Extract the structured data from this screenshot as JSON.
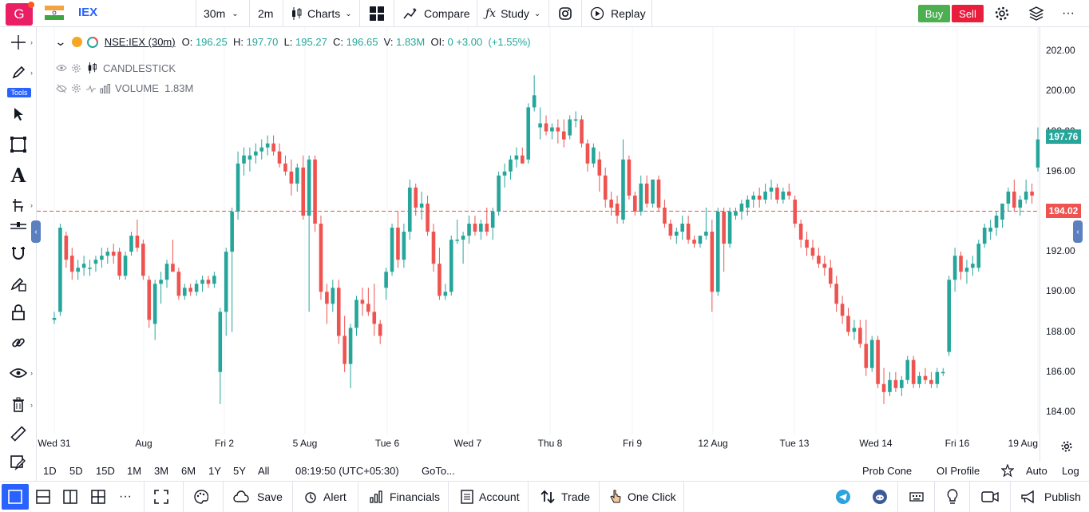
{
  "topbar": {
    "avatar_letter": "G",
    "symbol": "IEX",
    "interval": "30m",
    "interval2": "2m",
    "charts_label": "Charts",
    "compare_label": "Compare",
    "study_label": "Study",
    "replay_label": "Replay",
    "buy_label": "Buy",
    "sell_label": "Sell"
  },
  "legend": {
    "symbol_text": "NSE:IEX (30m)",
    "o_label": "O:",
    "o_value": "196.25",
    "h_label": "H:",
    "h_value": "197.70",
    "l_label": "L:",
    "l_value": "195.27",
    "c_label": "C:",
    "c_value": "196.65",
    "v_label": "V:",
    "v_value": "1.83M",
    "oi_label": "OI:",
    "oi_value": "0",
    "change": "+3.00",
    "change_pct": "(+1.55%)",
    "candlestick_label": "CANDLESTICK",
    "volume_label": "VOLUME",
    "volume_value": "1.83M"
  },
  "left_toolbar": {
    "tools_badge": "Tools"
  },
  "xaxis": {
    "labels": [
      "Wed 31",
      "Aug",
      "Fri 2",
      "5 Aug",
      "Tue 6",
      "Wed 7",
      "Thu 8",
      "Fri 9",
      "12 Aug",
      "Tue 13",
      "Wed 14",
      "Fri 16",
      "19 Aug"
    ]
  },
  "yaxis": {
    "labels": [
      "202.00",
      "200.00",
      "198.00",
      "196.00",
      "194.00",
      "192.00",
      "190.00",
      "188.00",
      "186.00",
      "184.00"
    ],
    "last_price": "197.76",
    "alert_price": "194.02"
  },
  "rangebar": {
    "ranges": [
      "1D",
      "5D",
      "15D",
      "1M",
      "3M",
      "6M",
      "1Y",
      "5Y",
      "All"
    ],
    "time": "08:19:50 (UTC+05:30)",
    "goto": "GoTo...",
    "prob_cone": "Prob Cone",
    "oi_profile": "OI Profile",
    "auto": "Auto",
    "log": "Log"
  },
  "bottombar": {
    "save": "Save",
    "alert": "Alert",
    "financials": "Financials",
    "account": "Account",
    "trade": "Trade",
    "one_click": "One Click",
    "publish": "Publish"
  },
  "colors": {
    "up": "#26a69a",
    "down": "#ef5350",
    "accent": "#2962ff",
    "alert_line": "#ef5350"
  },
  "chart_data": {
    "type": "candlestick",
    "ylim": [
      183.2,
      203.2
    ],
    "alert_level": 194.02,
    "last_price": 197.76,
    "candles": [
      [
        188.6,
        189.0,
        188.4,
        188.7
      ],
      [
        189.0,
        193.4,
        188.8,
        193.2
      ],
      [
        192.8,
        193.0,
        191.2,
        191.6
      ],
      [
        191.8,
        192.2,
        190.6,
        191.0
      ],
      [
        191.0,
        191.6,
        190.6,
        191.2
      ],
      [
        191.2,
        191.8,
        190.8,
        191.4
      ],
      [
        191.2,
        191.6,
        190.8,
        191.2
      ],
      [
        191.4,
        191.8,
        191.0,
        191.6
      ],
      [
        191.6,
        192.2,
        191.2,
        191.8
      ],
      [
        191.8,
        192.2,
        191.4,
        192.0
      ],
      [
        192.0,
        192.4,
        191.4,
        191.8
      ],
      [
        192.0,
        192.2,
        190.6,
        190.8
      ],
      [
        190.8,
        192.0,
        190.6,
        191.8
      ],
      [
        192.0,
        193.0,
        191.8,
        192.8
      ],
      [
        192.8,
        193.6,
        192.0,
        192.2
      ],
      [
        192.4,
        192.6,
        190.6,
        190.8
      ],
      [
        190.6,
        190.8,
        188.2,
        188.6
      ],
      [
        188.4,
        190.6,
        187.6,
        190.4
      ],
      [
        190.4,
        191.0,
        189.4,
        190.6
      ],
      [
        190.6,
        191.6,
        190.2,
        191.4
      ],
      [
        191.4,
        192.6,
        191.2,
        191.0
      ],
      [
        191.0,
        191.2,
        189.6,
        189.8
      ],
      [
        189.8,
        190.4,
        189.6,
        190.2
      ],
      [
        190.2,
        190.4,
        189.8,
        190.0
      ],
      [
        190.0,
        190.6,
        189.8,
        190.4
      ],
      [
        190.4,
        190.8,
        190.0,
        190.6
      ],
      [
        190.6,
        190.8,
        190.2,
        190.4
      ],
      [
        190.4,
        191.0,
        190.2,
        190.8
      ],
      [
        186.0,
        189.2,
        184.4,
        189.0
      ],
      [
        189.0,
        192.2,
        187.8,
        192.0
      ],
      [
        192.0,
        194.2,
        188.0,
        194.0
      ],
      [
        194.0,
        197.0,
        193.6,
        196.4
      ],
      [
        196.4,
        197.2,
        195.8,
        196.8
      ],
      [
        196.6,
        197.2,
        196.0,
        196.8
      ],
      [
        196.8,
        197.4,
        196.4,
        197.0
      ],
      [
        197.0,
        197.6,
        196.6,
        197.2
      ],
      [
        197.2,
        197.8,
        196.8,
        197.4
      ],
      [
        197.4,
        197.8,
        196.8,
        197.0
      ],
      [
        197.0,
        197.4,
        196.2,
        196.4
      ],
      [
        196.4,
        196.8,
        195.8,
        196.0
      ],
      [
        196.0,
        196.6,
        194.8,
        195.4
      ],
      [
        195.4,
        196.4,
        195.0,
        196.2
      ],
      [
        196.2,
        196.8,
        193.6,
        193.8
      ],
      [
        193.8,
        196.8,
        189.0,
        196.6
      ],
      [
        196.6,
        196.8,
        193.0,
        193.4
      ],
      [
        193.4,
        193.8,
        189.6,
        190.0
      ],
      [
        190.0,
        190.4,
        188.4,
        189.4
      ],
      [
        189.4,
        190.6,
        189.0,
        190.2
      ],
      [
        190.2,
        190.6,
        187.4,
        187.8
      ],
      [
        187.8,
        188.8,
        186.0,
        186.4
      ],
      [
        186.4,
        188.4,
        185.2,
        188.2
      ],
      [
        188.2,
        189.8,
        187.8,
        189.6
      ],
      [
        189.6,
        190.2,
        188.8,
        189.4
      ],
      [
        189.4,
        190.2,
        188.8,
        189.0
      ],
      [
        189.0,
        190.4,
        187.8,
        188.4
      ],
      [
        188.4,
        188.6,
        187.4,
        187.8
      ],
      [
        190.2,
        191.2,
        189.6,
        191.0
      ],
      [
        191.0,
        193.4,
        190.8,
        193.2
      ],
      [
        193.2,
        194.0,
        191.2,
        191.6
      ],
      [
        191.6,
        193.4,
        191.2,
        193.0
      ],
      [
        193.0,
        195.6,
        192.6,
        195.2
      ],
      [
        195.2,
        195.4,
        193.8,
        194.2
      ],
      [
        194.2,
        195.0,
        193.6,
        194.4
      ],
      [
        194.4,
        194.8,
        192.8,
        193.0
      ],
      [
        193.0,
        193.4,
        191.0,
        191.4
      ],
      [
        191.4,
        192.2,
        189.6,
        189.8
      ],
      [
        189.8,
        190.4,
        189.6,
        190.0
      ],
      [
        190.0,
        192.8,
        189.8,
        192.6
      ],
      [
        192.6,
        193.6,
        192.4,
        192.6
      ],
      [
        192.6,
        193.0,
        191.4,
        192.8
      ],
      [
        192.8,
        193.8,
        192.4,
        193.4
      ],
      [
        193.4,
        193.8,
        192.8,
        193.0
      ],
      [
        193.0,
        193.6,
        192.6,
        193.4
      ],
      [
        193.4,
        194.2,
        192.8,
        193.0
      ],
      [
        193.2,
        194.2,
        192.6,
        194.0
      ],
      [
        194.0,
        196.0,
        193.8,
        195.8
      ],
      [
        195.8,
        196.4,
        195.2,
        196.0
      ],
      [
        196.0,
        196.8,
        195.6,
        196.6
      ],
      [
        196.6,
        197.2,
        196.2,
        196.8
      ],
      [
        196.8,
        197.2,
        196.4,
        196.4
      ],
      [
        196.6,
        199.4,
        196.4,
        199.2
      ],
      [
        199.2,
        200.8,
        199.0,
        199.8
      ],
      [
        198.2,
        199.2,
        197.6,
        198.4
      ],
      [
        198.4,
        198.8,
        197.8,
        198.0
      ],
      [
        198.0,
        198.4,
        197.6,
        198.2
      ],
      [
        198.2,
        198.6,
        197.4,
        198.0
      ],
      [
        198.0,
        198.6,
        197.2,
        197.6
      ],
      [
        197.8,
        198.8,
        197.6,
        198.6
      ],
      [
        198.6,
        199.0,
        198.2,
        198.6
      ],
      [
        198.6,
        198.8,
        197.2,
        197.4
      ],
      [
        197.4,
        197.6,
        196.0,
        196.4
      ],
      [
        196.4,
        197.4,
        196.2,
        197.2
      ],
      [
        196.6,
        197.0,
        195.0,
        195.8
      ],
      [
        195.8,
        196.2,
        194.2,
        194.6
      ],
      [
        194.6,
        195.0,
        193.8,
        194.2
      ],
      [
        194.4,
        194.8,
        193.4,
        193.8
      ],
      [
        193.6,
        197.6,
        193.4,
        196.6
      ],
      [
        196.6,
        196.8,
        194.6,
        194.8
      ],
      [
        194.8,
        195.0,
        193.8,
        194.0
      ],
      [
        194.0,
        195.8,
        193.8,
        195.4
      ],
      [
        195.4,
        195.8,
        194.2,
        194.4
      ],
      [
        194.4,
        195.6,
        194.2,
        195.6
      ],
      [
        195.6,
        195.8,
        194.0,
        194.2
      ],
      [
        194.2,
        194.6,
        193.2,
        193.4
      ],
      [
        193.4,
        193.6,
        192.6,
        192.8
      ],
      [
        192.8,
        193.2,
        192.4,
        193.0
      ],
      [
        193.0,
        193.8,
        192.6,
        193.4
      ],
      [
        193.4,
        193.8,
        192.4,
        192.6
      ],
      [
        192.6,
        192.8,
        192.2,
        192.4
      ],
      [
        192.4,
        192.8,
        192.2,
        192.8
      ],
      [
        192.8,
        194.2,
        192.6,
        193.0
      ],
      [
        193.0,
        193.6,
        189.0,
        190.0
      ],
      [
        190.0,
        194.2,
        189.8,
        194.0
      ],
      [
        194.0,
        194.2,
        191.0,
        192.4
      ],
      [
        192.4,
        194.2,
        192.2,
        194.0
      ],
      [
        193.8,
        194.2,
        193.6,
        194.0
      ],
      [
        194.0,
        194.6,
        193.6,
        194.4
      ],
      [
        194.2,
        194.8,
        193.8,
        194.6
      ],
      [
        194.6,
        195.0,
        194.2,
        194.8
      ],
      [
        194.8,
        195.2,
        194.2,
        194.6
      ],
      [
        194.6,
        195.4,
        194.4,
        195.0
      ],
      [
        195.0,
        195.6,
        194.6,
        195.2
      ],
      [
        195.2,
        195.4,
        194.4,
        194.6
      ],
      [
        194.6,
        195.2,
        194.4,
        195.0
      ],
      [
        195.0,
        195.4,
        194.6,
        194.8
      ],
      [
        194.6,
        194.8,
        193.2,
        193.4
      ],
      [
        193.4,
        193.6,
        192.2,
        192.6
      ],
      [
        192.6,
        193.0,
        191.8,
        192.2
      ],
      [
        192.2,
        192.6,
        191.6,
        191.8
      ],
      [
        191.8,
        192.2,
        191.2,
        191.4
      ],
      [
        191.4,
        191.8,
        190.8,
        191.2
      ],
      [
        191.2,
        191.6,
        190.2,
        190.4
      ],
      [
        190.4,
        190.8,
        189.0,
        189.4
      ],
      [
        189.4,
        189.8,
        188.4,
        188.8
      ],
      [
        188.8,
        189.2,
        187.8,
        188.0
      ],
      [
        188.0,
        188.6,
        187.6,
        188.2
      ],
      [
        188.2,
        188.6,
        187.2,
        187.4
      ],
      [
        187.4,
        188.6,
        185.8,
        186.2
      ],
      [
        186.2,
        187.8,
        186.0,
        187.6
      ],
      [
        187.6,
        187.8,
        185.2,
        185.4
      ],
      [
        185.4,
        186.2,
        184.4,
        185.0
      ],
      [
        185.0,
        186.0,
        184.8,
        185.6
      ],
      [
        185.6,
        186.0,
        185.0,
        185.2
      ],
      [
        185.2,
        185.8,
        184.8,
        185.6
      ],
      [
        185.6,
        186.8,
        185.4,
        186.6
      ],
      [
        186.6,
        186.8,
        185.2,
        185.4
      ],
      [
        185.4,
        186.0,
        185.2,
        185.8
      ],
      [
        185.8,
        186.2,
        185.4,
        185.6
      ],
      [
        185.6,
        186.0,
        185.2,
        185.4
      ],
      [
        185.4,
        186.2,
        185.2,
        186.0
      ],
      [
        186.0,
        186.2,
        185.8,
        186.0
      ],
      [
        187.0,
        190.8,
        186.8,
        190.6
      ],
      [
        190.6,
        192.2,
        190.0,
        191.8
      ],
      [
        191.8,
        192.0,
        190.6,
        191.0
      ],
      [
        191.0,
        191.6,
        190.4,
        191.2
      ],
      [
        191.2,
        191.8,
        190.8,
        191.4
      ],
      [
        191.2,
        192.6,
        191.0,
        192.4
      ],
      [
        192.4,
        193.4,
        192.2,
        193.2
      ],
      [
        193.0,
        193.6,
        192.6,
        193.2
      ],
      [
        193.2,
        194.0,
        192.8,
        193.8
      ],
      [
        193.6,
        194.4,
        193.2,
        194.4
      ],
      [
        194.4,
        195.2,
        194.0,
        195.0
      ],
      [
        195.0,
        195.6,
        194.0,
        194.2
      ],
      [
        194.2,
        194.8,
        193.8,
        194.6
      ],
      [
        194.6,
        195.6,
        194.4,
        195.0
      ],
      [
        195.0,
        195.4,
        194.4,
        194.8
      ],
      [
        196.2,
        198.2,
        196.0,
        197.6
      ]
    ]
  }
}
